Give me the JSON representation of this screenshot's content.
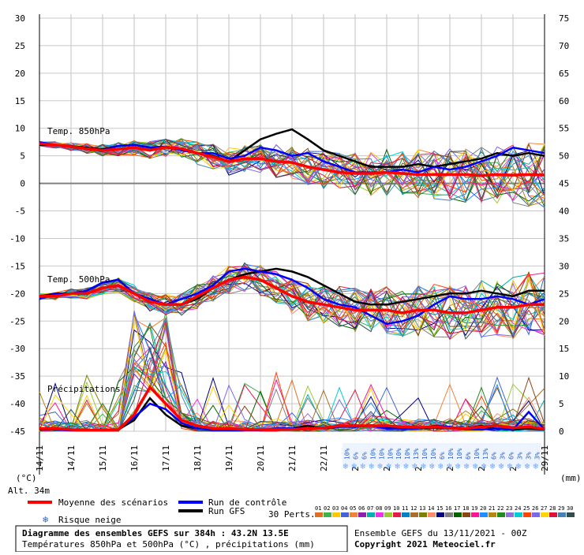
{
  "chart_data": [
    {
      "type": "line",
      "title": "Diagramme des ensembles GEFS sur 384h : 43.2N 13.5E",
      "subtitle": "Températures 850hPa et 500hPa (°C) , précipitations (mm)",
      "x_ticks": [
        "14/11",
        "14/11",
        "15/11",
        "16/11",
        "17/11",
        "18/11",
        "19/11",
        "20/11",
        "21/11",
        "22/11",
        "23/11",
        "24/11",
        "25/11",
        "26/11",
        "27/11",
        "28/11",
        "29/11"
      ],
      "y_left_ticks": [
        30,
        25,
        20,
        15,
        10,
        5,
        0,
        -5,
        -10,
        -15,
        -20,
        -25,
        -30,
        -35,
        -40,
        -45
      ],
      "y_right_ticks": [
        75,
        70,
        65,
        60,
        55,
        50,
        45,
        40,
        35,
        30,
        25,
        20,
        15,
        10,
        5,
        0
      ],
      "ylim_left": [
        -45,
        30
      ],
      "ylim_right": [
        0,
        75
      ],
      "ylabel_left": "(°C)",
      "ylabel_right": "(mm)",
      "altitude": "Alt. 34m",
      "grid": true,
      "panels": [
        {
          "label": "Temp. 850hPa",
          "unit": "°C"
        },
        {
          "label": "Temp. 500hPa",
          "unit": "°C"
        },
        {
          "label": "Précipitations",
          "unit": "mm"
        }
      ],
      "x_days": [
        0,
        0.5,
        1,
        1.5,
        2,
        2.5,
        3,
        3.5,
        4,
        4.5,
        5,
        5.5,
        6,
        6.5,
        7,
        7.5,
        8,
        8.5,
        9,
        9.5,
        10,
        10.5,
        11,
        11.5,
        12,
        12.5,
        13,
        13.5,
        14,
        14.5,
        15,
        15.5,
        16
      ],
      "series": [
        {
          "name": "Moyenne des scénarios",
          "color": "#ff0000",
          "width": 3.5,
          "t850": [
            7.2,
            7,
            6.7,
            6.3,
            6,
            6.2,
            6.5,
            6,
            6.6,
            6.3,
            5.5,
            4.8,
            4,
            4.5,
            4.5,
            4,
            3.8,
            3,
            2.5,
            2,
            1.8,
            1.8,
            2,
            1.8,
            1.6,
            1.6,
            1.6,
            1.6,
            1.4,
            1.6,
            1.5,
            1.6,
            1.5
          ],
          "t500": [
            -20.5,
            -20.5,
            -20,
            -20,
            -19,
            -18.5,
            -20,
            -21.5,
            -22,
            -22,
            -20.5,
            -19,
            -17.5,
            -17,
            -17.5,
            -19,
            -20.5,
            -21.5,
            -22,
            -22.5,
            -23,
            -23,
            -23,
            -23.5,
            -23,
            -23,
            -23.5,
            -23.5,
            -23,
            -22.5,
            -22.5,
            -22,
            -22
          ],
          "precip": [
            0.5,
            0.5,
            0.3,
            0.2,
            0.2,
            0.3,
            3,
            8,
            5,
            2,
            1,
            0.5,
            0.5,
            0.3,
            0.3,
            0.3,
            0.3,
            0.5,
            0.6,
            1,
            1,
            1,
            1,
            0.8,
            0.7,
            0.8,
            0.6,
            0.5,
            0.8,
            1,
            0.6,
            0.8,
            0.4
          ]
        },
        {
          "name": "Run de contrôle",
          "color": "#0000ff",
          "width": 2.5,
          "t850": [
            7.5,
            7,
            6.8,
            6.2,
            6,
            6.8,
            7,
            6.5,
            6.7,
            6,
            5.5,
            5.5,
            4.5,
            5,
            6.5,
            6,
            5,
            5.5,
            4,
            3,
            2,
            2,
            2,
            2.5,
            2,
            3,
            2.5,
            3,
            4,
            5,
            6.5,
            6,
            5.5
          ],
          "t500": [
            -21,
            -20,
            -20,
            -19.5,
            -18,
            -17.5,
            -20,
            -21,
            -22,
            -21,
            -20,
            -18.5,
            -16,
            -15.5,
            -16,
            -16.5,
            -17.5,
            -19,
            -21,
            -22,
            -22.5,
            -24,
            -25.5,
            -25,
            -24,
            -22,
            -20.5,
            -21,
            -21,
            -20.5,
            -21,
            -22,
            -21
          ],
          "precip": [
            0.3,
            0.3,
            0.2,
            0.2,
            0.2,
            0.3,
            2.5,
            5,
            4,
            1.5,
            0.5,
            0.2,
            0.2,
            0.2,
            0.2,
            0.5,
            0.5,
            0.5,
            0.6,
            0.8,
            0.8,
            1,
            0.5,
            0.4,
            0.5,
            1,
            0.8,
            0.3,
            0.3,
            0.5,
            0.3,
            3.5,
            0.3
          ]
        },
        {
          "name": "Run GFS",
          "color": "#000000",
          "width": 2.5,
          "t850": [
            7,
            7,
            6.8,
            6.5,
            6.2,
            6.8,
            7,
            6.5,
            6.5,
            6.2,
            5.5,
            5,
            4,
            6,
            8,
            9,
            9.8,
            8,
            6,
            5,
            4,
            3,
            3,
            3,
            3.5,
            3,
            3.5,
            4,
            4.5,
            5.5,
            5,
            5.5,
            5
          ],
          "t500": [
            -20.5,
            -20,
            -20,
            -19.5,
            -18,
            -17.5,
            -20,
            -21.5,
            -22,
            -22,
            -21,
            -19,
            -17.5,
            -16.5,
            -16,
            -15.5,
            -16,
            -17,
            -18.5,
            -20,
            -21.5,
            -22,
            -22,
            -21.5,
            -21,
            -20.5,
            -20,
            -20,
            -19.5,
            -20,
            -20.5,
            -19.5,
            -19.5
          ],
          "precip": [
            0.3,
            0.3,
            0.2,
            0.2,
            0.2,
            0.3,
            2,
            6,
            3,
            1,
            0.5,
            0.3,
            0.2,
            0.2,
            0.2,
            0.5,
            0.5,
            1,
            0.5,
            0.8,
            1,
            1,
            0.8,
            0.6,
            0.5,
            0.6,
            0.5,
            0.5,
            1,
            0.4,
            0.3,
            0.5,
            0.3
          ]
        }
      ],
      "perturbation_count": 30,
      "perturbation_labels": [
        "01",
        "02",
        "03",
        "04",
        "05",
        "06",
        "07",
        "08",
        "09",
        "10",
        "11",
        "12",
        "13",
        "14",
        "15",
        "16",
        "17",
        "18",
        "19",
        "20",
        "21",
        "22",
        "23",
        "24",
        "25",
        "26",
        "27",
        "28",
        "29",
        "30"
      ],
      "perturbation_colors": [
        "#e07020",
        "#3cb44b",
        "#ffc800",
        "#4363d8",
        "#f58231",
        "#911eb4",
        "#00b0b0",
        "#f032e6",
        "#9acd32",
        "#e6194b",
        "#0082c8",
        "#aa6e28",
        "#808000",
        "#ff8c69",
        "#000080",
        "#808080",
        "#006400",
        "#8b4513",
        "#ff1493",
        "#1e90ff",
        "#b8860b",
        "#228b22",
        "#9370db",
        "#00ced1",
        "#ff4500",
        "#7b68ee",
        "#ffd700",
        "#dc143c",
        "#4682b4",
        "#2f4f4f"
      ],
      "snow_risk": [
        "10%",
        "6%",
        "6%",
        "10%",
        "10%",
        "10%",
        "10%",
        "10%",
        "13%",
        "10%",
        "10%",
        "6%",
        "10%",
        "10%",
        "6%",
        "10%",
        "13%",
        "6%",
        "3%",
        "6%",
        "3%",
        "3%",
        "3%"
      ],
      "legend": {
        "mean": "Moyenne des scénarios",
        "control": "Run de contrôle",
        "gfs": "Run GFS",
        "snow": "Risque neige",
        "perts": "30 Perts."
      },
      "footer": {
        "title": "Diagramme des ensembles GEFS sur 384h : 43.2N 13.5E",
        "subtitle": "Températures 850hPa et 500hPa (°C) , précipitations (mm)",
        "run": "Ensemble GEFS du 13/11/2021 - 00Z",
        "copyright": "Copyright 2021 Meteociel.fr"
      }
    }
  ]
}
